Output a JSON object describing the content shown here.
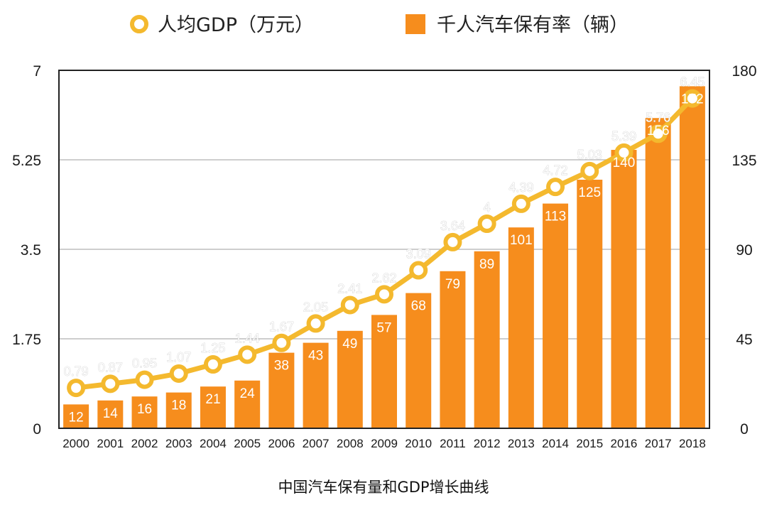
{
  "chart_data": {
    "type": "bar+line",
    "categories": [
      "2000",
      "2001",
      "2002",
      "2003",
      "2004",
      "2005",
      "2006",
      "2007",
      "2008",
      "2009",
      "2010",
      "2011",
      "2012",
      "2013",
      "2014",
      "2015",
      "2016",
      "2017",
      "2018"
    ],
    "series": [
      {
        "name": "人均GDP（万元）",
        "type": "line",
        "axis": "left",
        "color": "#F4B92E",
        "values": [
          0.79,
          0.87,
          0.95,
          1.07,
          1.25,
          1.44,
          1.67,
          2.05,
          2.41,
          2.62,
          3.09,
          3.64,
          4,
          4.39,
          4.72,
          5.03,
          5.39,
          5.76,
          6.45
        ],
        "labels": [
          "0.79",
          "0.87",
          "0.95",
          "1.07",
          "1.25",
          "1.44",
          "1.67",
          "2.05",
          "2.41",
          "2.62",
          "3.09",
          "3.64",
          "4",
          "4.39",
          "4.72",
          "5.03",
          "5.39",
          "5.76",
          "6.45"
        ]
      },
      {
        "name": "千人汽车保有率（辆）",
        "type": "bar",
        "axis": "right",
        "color": "#F68D1D",
        "values": [
          12,
          14,
          16,
          18,
          21,
          24,
          38,
          43,
          49,
          57,
          68,
          79,
          89,
          101,
          113,
          125,
          140,
          156,
          172
        ],
        "labels": [
          "12",
          "14",
          "16",
          "18",
          "21",
          "24",
          "38",
          "43",
          "49",
          "57",
          "68",
          "79",
          "89",
          "101",
          "113",
          "125",
          "140",
          "156",
          "172"
        ]
      }
    ],
    "y_left": {
      "range": [
        0,
        7
      ],
      "ticks": [
        0,
        1.75,
        3.5,
        5.25,
        7
      ],
      "tick_labels": [
        "0",
        "1.75",
        "3.5",
        "5.25",
        "7"
      ]
    },
    "y_right": {
      "range": [
        0,
        180
      ],
      "ticks": [
        0,
        45,
        90,
        135,
        180
      ],
      "tick_labels": [
        "0",
        "45",
        "90",
        "135",
        "180"
      ]
    },
    "grid": true,
    "legend_position": "top",
    "title": "",
    "xlabel": "",
    "ylabel": "",
    "caption": "中国汽车保有量和GDP增长曲线"
  }
}
